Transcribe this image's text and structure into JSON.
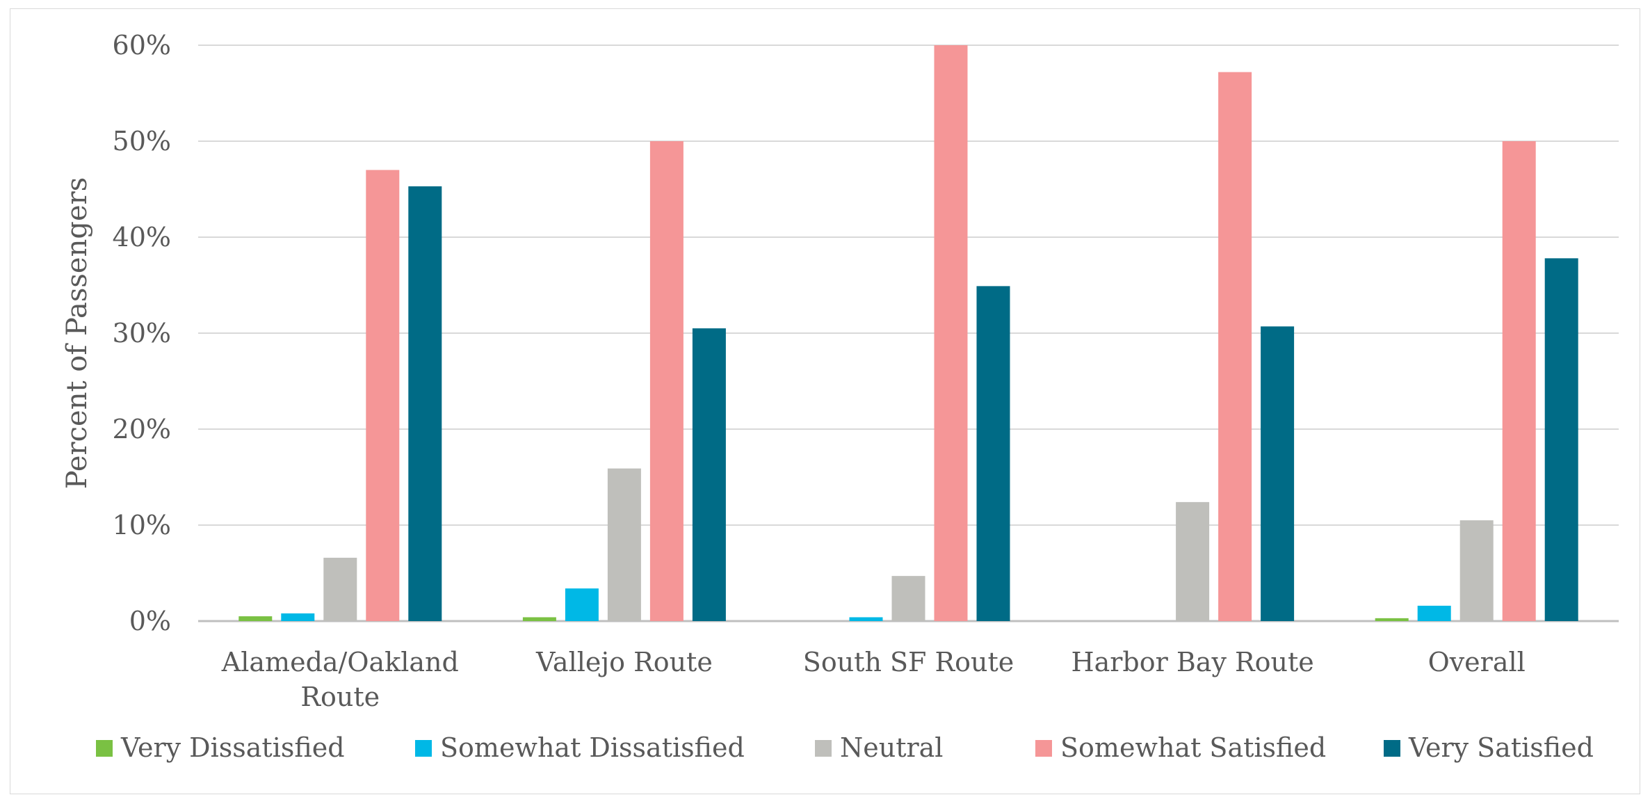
{
  "chart_data": {
    "type": "bar",
    "title": "",
    "xlabel": "",
    "ylabel": "Percent of Passengers",
    "ylim": [
      0,
      60
    ],
    "yticks": [
      "0%",
      "10%",
      "20%",
      "30%",
      "40%",
      "50%",
      "60%"
    ],
    "grid": true,
    "legend_position": "bottom",
    "categories": [
      [
        "Alameda/Oakland",
        "Route"
      ],
      [
        "Vallejo Route"
      ],
      [
        "South SF Route"
      ],
      [
        "Harbor Bay Route"
      ],
      [
        "Overall"
      ]
    ],
    "series": [
      {
        "name": "Very Dissatisfied",
        "color": "#7ac143",
        "values": [
          0.5,
          0.4,
          0,
          0,
          0.3
        ]
      },
      {
        "name": "Somewhat Dissatisfied",
        "color": "#00b8e6",
        "values": [
          0.8,
          3.4,
          0.4,
          0,
          1.6
        ]
      },
      {
        "name": "Neutral",
        "color": "#bfbfbb",
        "values": [
          6.6,
          15.9,
          4.7,
          12.4,
          10.5
        ]
      },
      {
        "name": "Somewhat Satisfied",
        "color": "#f59697",
        "values": [
          47,
          50,
          60,
          57.2,
          50
        ]
      },
      {
        "name": "Very Satisfied",
        "color": "#006b86",
        "values": [
          45.3,
          30.5,
          34.9,
          30.7,
          37.8
        ]
      }
    ]
  }
}
